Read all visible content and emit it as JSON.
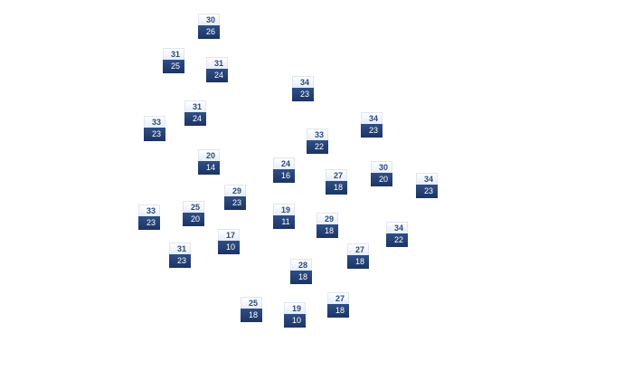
{
  "colors": {
    "high_text": "#2b4a80",
    "low_bg": "#1f3a6e",
    "low_text": "#ffffff"
  },
  "markers": [
    {
      "high": "30",
      "low": "26"
    },
    {
      "high": "31",
      "low": "25"
    },
    {
      "high": "31",
      "low": "24"
    },
    {
      "high": "34",
      "low": "23"
    },
    {
      "high": "31",
      "low": "24"
    },
    {
      "high": "33",
      "low": "23"
    },
    {
      "high": "33",
      "low": "22"
    },
    {
      "high": "34",
      "low": "23"
    },
    {
      "high": "20",
      "low": "14"
    },
    {
      "high": "24",
      "low": "16"
    },
    {
      "high": "27",
      "low": "18"
    },
    {
      "high": "30",
      "low": "20"
    },
    {
      "high": "34",
      "low": "23"
    },
    {
      "high": "29",
      "low": "23"
    },
    {
      "high": "25",
      "low": "20"
    },
    {
      "high": "33",
      "low": "23"
    },
    {
      "high": "19",
      "low": "11"
    },
    {
      "high": "29",
      "low": "18"
    },
    {
      "high": "34",
      "low": "22"
    },
    {
      "high": "17",
      "low": "10"
    },
    {
      "high": "31",
      "low": "23"
    },
    {
      "high": "27",
      "low": "18"
    },
    {
      "high": "28",
      "low": "18"
    },
    {
      "high": "27",
      "low": "18"
    },
    {
      "high": "25",
      "low": "18"
    },
    {
      "high": "19",
      "low": "10"
    }
  ]
}
